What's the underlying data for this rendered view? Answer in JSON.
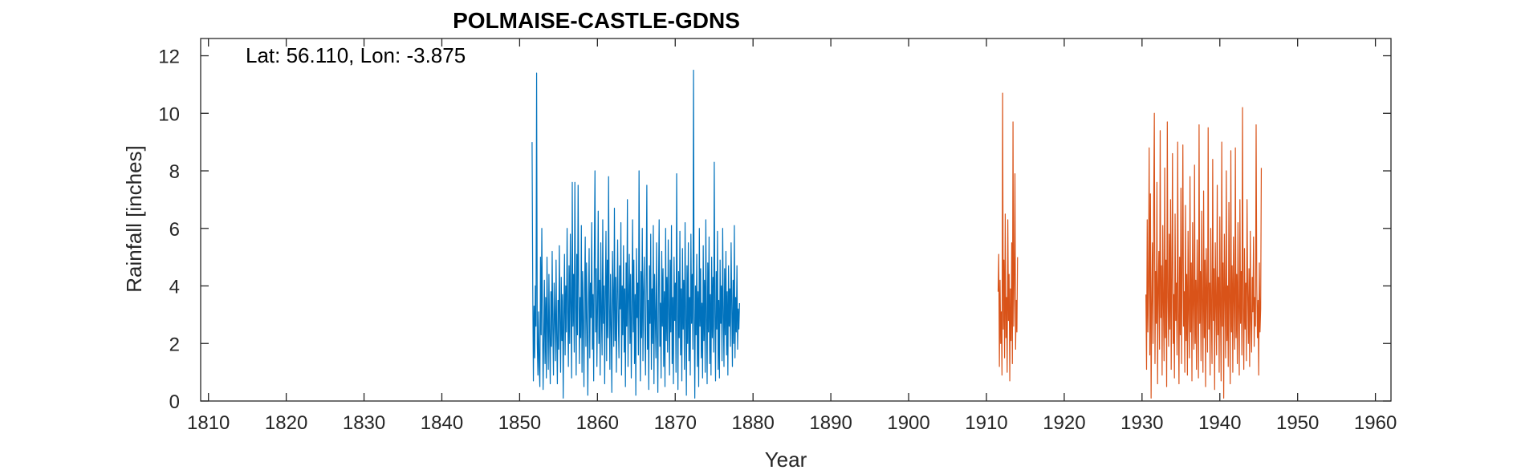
{
  "chart_data": {
    "type": "line",
    "title": "POLMAISE-CASTLE-GDNS",
    "xlabel": "Year",
    "ylabel": "Rainfall [inches]",
    "annotation": "Lat: 56.110, Lon: -3.875",
    "xlim": [
      1809,
      1962
    ],
    "ylim": [
      0,
      12.6
    ],
    "xticks": [
      1810,
      1820,
      1830,
      1840,
      1850,
      1860,
      1870,
      1880,
      1890,
      1900,
      1910,
      1920,
      1930,
      1940,
      1950,
      1960
    ],
    "yticks": [
      0,
      2,
      4,
      6,
      8,
      10,
      12
    ],
    "grid": false,
    "legend": "none",
    "series": [
      {
        "color": "#0072BD",
        "x_start": 1851.6,
        "x_step": 0.08333,
        "values": [
          9.0,
          4.0,
          0.7,
          3.3,
          1.5,
          4.0,
          2.6,
          11.4,
          2.0,
          0.9,
          3.1,
          1.2,
          0.5,
          5.0,
          2.3,
          6.0,
          3.0,
          0.4,
          2.1,
          4.2,
          1.3,
          3.6,
          0.8,
          5.0,
          2.7,
          1.1,
          4.4,
          2.2,
          0.6,
          3.8,
          1.9,
          5.2,
          2.5,
          0.9,
          4.1,
          3.0,
          1.4,
          4.9,
          2.3,
          0.6,
          3.5,
          1.8,
          5.4,
          2.8,
          1.0,
          4.3,
          2.1,
          3.7,
          0.1,
          2.9,
          5.1,
          1.6,
          4.0,
          2.4,
          6.0,
          3.2,
          1.2,
          4.7,
          2.0,
          5.8,
          3.1,
          0.8,
          7.6,
          2.6,
          4.4,
          1.7,
          7.6,
          3.5,
          0.9,
          5.1,
          2.3,
          7.5,
          4.0,
          1.3,
          3.6,
          2.2,
          6.1,
          1.0,
          4.5,
          2.8,
          0.5,
          3.9,
          5.7,
          1.9,
          4.8,
          2.5,
          0.2,
          3.4,
          5.3,
          1.5,
          4.1,
          2.9,
          6.2,
          1.8,
          3.7,
          0.7,
          5.0,
          8.0,
          2.4,
          4.6,
          1.2,
          3.3,
          6.6,
          2.0,
          4.2,
          0.9,
          5.5,
          3.0,
          1.6,
          6.3,
          2.7,
          4.0,
          0.6,
          3.8,
          5.9,
          1.4,
          4.9,
          2.2,
          7.8,
          3.4,
          1.1,
          4.4,
          2.6,
          0.3,
          5.2,
          3.7,
          1.9,
          6.7,
          2.1,
          4.3,
          1.0,
          3.5,
          5.6,
          2.8,
          1.5,
          4.7,
          3.2,
          6.2,
          0.9,
          4.0,
          2.3,
          5.4,
          1.7,
          3.9,
          0.5,
          4.8,
          2.6,
          7.0,
          1.2,
          3.6,
          5.1,
          2.0,
          4.4,
          0.8,
          3.1,
          6.3,
          2.4,
          4.9,
          1.3,
          3.7,
          0.2,
          5.3,
          2.9,
          4.1,
          1.6,
          8.0,
          3.3,
          0.7,
          4.5,
          2.2,
          6.0,
          1.4,
          3.8,
          5.0,
          2.5,
          0.9,
          4.2,
          7.5,
          1.8,
          3.5,
          0.4,
          4.7,
          2.7,
          5.8,
          1.1,
          3.9,
          2.0,
          6.1,
          0.6,
          4.4,
          3.0,
          1.5,
          5.5,
          2.3,
          0.3,
          4.0,
          6.3,
          1.9,
          3.4,
          0.8,
          5.2,
          2.6,
          4.6,
          1.2,
          3.8,
          0.5,
          6.0,
          2.1,
          4.3,
          1.7,
          5.6,
          3.1,
          0.9,
          4.9,
          2.4,
          6.1,
          1.3,
          3.6,
          0.6,
          5.0,
          2.8,
          4.1,
          1.0,
          7.9,
          3.3,
          0.4,
          4.5,
          2.2,
          5.9,
          1.6,
          3.9,
          0.7,
          5.3,
          2.5,
          4.2,
          1.1,
          6.2,
          3.0,
          0.2,
          4.7,
          2.0,
          5.5,
          1.4,
          3.6,
          0.9,
          5.8,
          2.7,
          4.4,
          1.8,
          11.5,
          3.2,
          0.1,
          4.0,
          2.3,
          5.1,
          1.2,
          3.8,
          0.5,
          6.0,
          2.6,
          4.6,
          1.5,
          3.4,
          0.8,
          5.4,
          2.1,
          4.2,
          1.0,
          6.3,
          2.9,
          0.6,
          4.8,
          2.4,
          5.7,
          1.3,
          3.7,
          0.9,
          5.0,
          2.2,
          4.3,
          1.7,
          8.3,
          3.1,
          0.7,
          4.5,
          2.5,
          5.9,
          1.1,
          3.5,
          0.8,
          4.9,
          2.7,
          4.0,
          1.4,
          6.0,
          3.0,
          1.2,
          4.6,
          2.3,
          5.2,
          1.6,
          3.8,
          0.9,
          4.7,
          2.6,
          3.9,
          1.9,
          5.5,
          3.3,
          1.2,
          4.2,
          2.0,
          6.1,
          1.5,
          3.6,
          2.4,
          4.7,
          1.8,
          3.2,
          2.5,
          3.4
        ]
      },
      {
        "color": "#D95319",
        "x_start": 1911.5,
        "x_step": 0.08333,
        "values": [
          3.8,
          5.1,
          1.2,
          4.2,
          2.0,
          3.1,
          0.9,
          10.7,
          2.5,
          4.9,
          1.5,
          6.5,
          2.2,
          3.6,
          1.0,
          6.3,
          2.8,
          4.4,
          0.7,
          3.9,
          2.1,
          5.5,
          1.3,
          9.7,
          2.6,
          4.1,
          7.9,
          1.8,
          3.5,
          2.4,
          5.0
        ]
      },
      {
        "color": "#D95319",
        "x_start": 1930.5,
        "x_step": 0.08333,
        "values": [
          3.7,
          1.1,
          6.3,
          2.4,
          4.0,
          8.8,
          1.6,
          7.2,
          0.1,
          3.3,
          5.5,
          2.0,
          6.9,
          10.0,
          1.3,
          4.5,
          2.7,
          7.6,
          0.6,
          3.9,
          5.2,
          1.8,
          9.4,
          2.9,
          4.7,
          0.9,
          6.1,
          3.4,
          1.4,
          8.1,
          2.2,
          4.9,
          0.5,
          9.7,
          3.6,
          1.9,
          5.8,
          2.5,
          7.0,
          1.1,
          4.3,
          8.6,
          2.0,
          3.7,
          0.8,
          6.5,
          2.8,
          4.1,
          1.6,
          9.0,
          3.1,
          0.6,
          5.0,
          2.3,
          7.4,
          1.3,
          4.6,
          8.9,
          2.6,
          3.8,
          1.0,
          6.8,
          2.1,
          4.4,
          0.9,
          5.9,
          3.0,
          1.5,
          7.8,
          2.4,
          4.8,
          0.7,
          6.2,
          3.3,
          1.8,
          8.2,
          2.0,
          4.2,
          1.1,
          5.6,
          3.5,
          0.8,
          9.6,
          2.7,
          4.5,
          1.4,
          6.6,
          3.2,
          1.0,
          7.3,
          2.2,
          4.9,
          0.5,
          5.3,
          3.6,
          1.7,
          9.5,
          2.5,
          4.1,
          0.9,
          6.0,
          3.0,
          1.3,
          8.4,
          2.8,
          4.6,
          0.4,
          5.5,
          3.4,
          1.6,
          7.5,
          2.3,
          4.3,
          1.0,
          6.4,
          3.1,
          0.7,
          9.0,
          2.6,
          4.8,
          0.1,
          5.8,
          3.7,
          1.5,
          8.0,
          2.1,
          4.0,
          1.2,
          6.9,
          3.3,
          0.6,
          8.7,
          2.4,
          4.7,
          1.0,
          5.7,
          3.5,
          1.8,
          8.8,
          2.2,
          4.4,
          1.3,
          6.2,
          3.0,
          0.9,
          7.0,
          2.7,
          4.5,
          1.6,
          10.2,
          3.2,
          1.1,
          5.3,
          2.5,
          4.1,
          1.4,
          7.0,
          3.8,
          2.0,
          4.6,
          1.2,
          5.9,
          2.8,
          1.7,
          4.3,
          3.1,
          5.7,
          1.9,
          3.6,
          2.6,
          9.6,
          4.0,
          2.2,
          3.5,
          0.9,
          4.8,
          2.4,
          3.2,
          8.1
        ]
      }
    ]
  }
}
